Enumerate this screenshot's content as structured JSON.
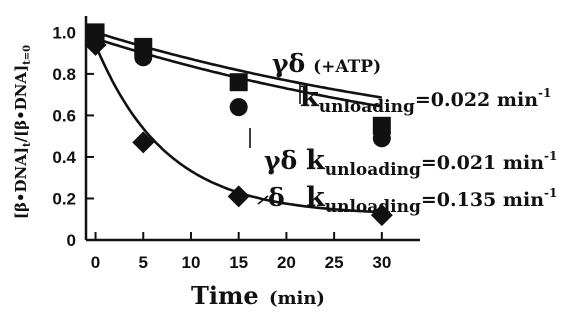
{
  "chart_data": {
    "type": "scatter",
    "xlabel": "Time",
    "xlabel_unit": "(min)",
    "ylabel": "[β•DNA]t/[β•DNA]t=0",
    "ylabel_parts": {
      "main": "[β•DNA]",
      "sub1": "t",
      "mid": "/[β•DNA]",
      "sub2": "t=0"
    },
    "xlim": [
      -1,
      34
    ],
    "ylim": [
      0,
      1.05
    ],
    "xticks": [
      0,
      5,
      10,
      15,
      20,
      25,
      30
    ],
    "yticks": [
      0,
      0.2,
      0.4,
      0.6,
      0.8,
      1.0
    ],
    "ytick_labels": [
      "0",
      "0.2",
      "0.4",
      "0.6",
      "0.8",
      "1.0"
    ],
    "series": [
      {
        "name": "γδ (+ATP)",
        "marker": "square",
        "x": [
          0,
          5,
          15,
          30
        ],
        "y": [
          1.0,
          0.93,
          0.76,
          0.55
        ],
        "fit_k": 0.022,
        "fit_plateau": 0.35
      },
      {
        "name": "γδ",
        "marker": "circle",
        "x": [
          0,
          5,
          15,
          30
        ],
        "y": [
          0.97,
          0.88,
          0.64,
          0.49
        ],
        "fit_k": 0.021,
        "fit_plateau": 0.27
      },
      {
        "name": "δ",
        "marker": "diamond",
        "x": [
          0,
          5,
          15,
          30
        ],
        "y": [
          0.94,
          0.47,
          0.21,
          0.12
        ],
        "fit_k": 0.135,
        "fit_plateau": 0.12
      }
    ],
    "annotations": [
      {
        "label": "γδ",
        "extra": "(+ATP)",
        "k_prefix": "k",
        "k_sub": "unloading",
        "k_value": "=0.022 min",
        "k_sup": "-1"
      },
      {
        "label": "γδ",
        "extra": "",
        "k_prefix": "k",
        "k_sub": "unloading",
        "k_value": "=0.021 min",
        "k_sup": "-1"
      },
      {
        "label": "δ",
        "extra": "",
        "k_prefix": "k",
        "k_sub": "unloading",
        "k_value": "=0.135 min",
        "k_sup": "-1"
      }
    ],
    "grid": false,
    "legend": "none"
  }
}
